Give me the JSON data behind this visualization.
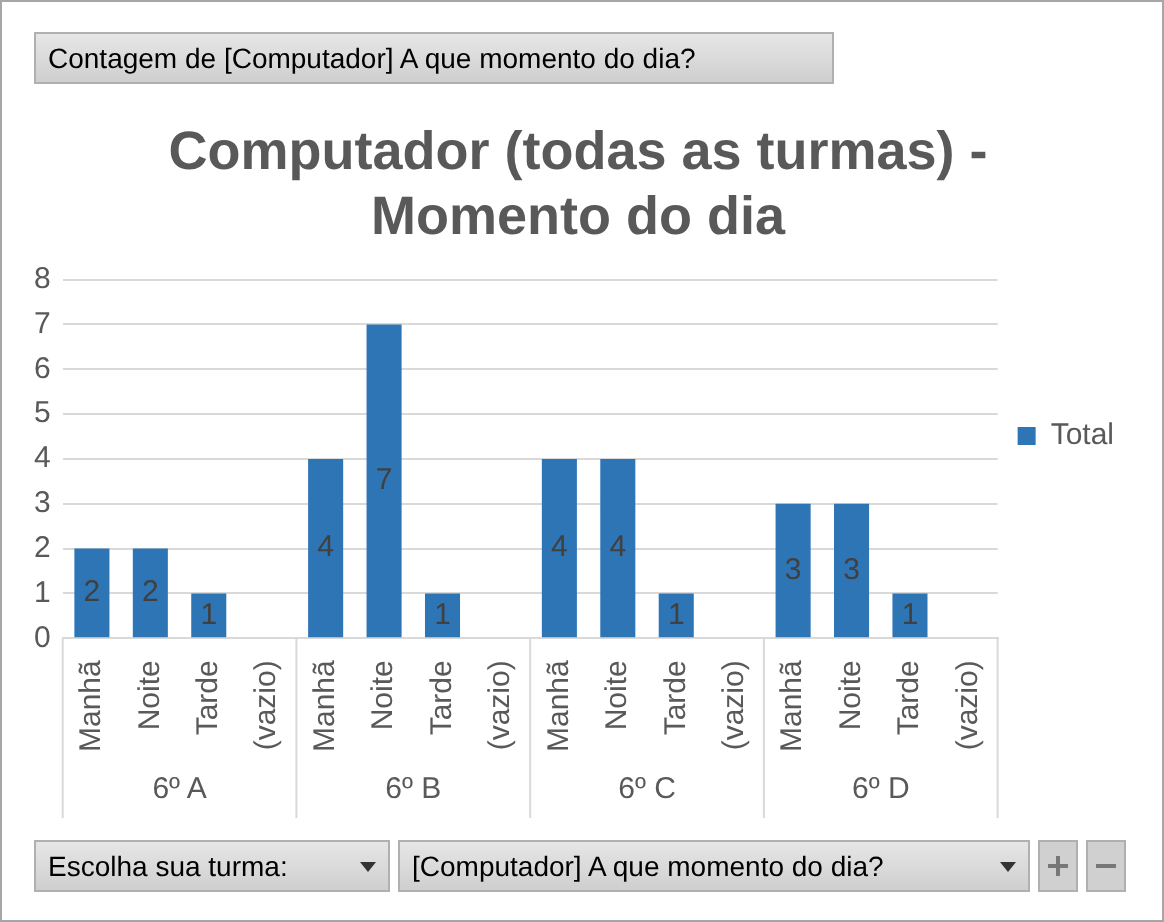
{
  "chart_data": {
    "type": "bar",
    "title": "Computador (todas as turmas) - Momento do dia",
    "categories": [
      "Manhã",
      "Noite",
      "Tarde",
      "(vazio)",
      "Manhã",
      "Noite",
      "Tarde",
      "(vazio)",
      "Manhã",
      "Noite",
      "Tarde",
      "(vazio)",
      "Manhã",
      "Noite",
      "Tarde",
      "(vazio)"
    ],
    "series": [
      {
        "name": "Total",
        "color": "#2e75b6",
        "values": [
          2,
          2,
          1,
          null,
          4,
          7,
          1,
          null,
          4,
          4,
          1,
          null,
          3,
          3,
          1,
          null
        ]
      }
    ],
    "annotations": [
      "Contagem de [Computador] A que momento do dia?",
      "Escolha sua turma:",
      "[Computador] A que momento do dia?",
      "6º A",
      "6º B",
      "6º C",
      "6º D"
    ],
    "ylim": [
      0,
      8
    ],
    "yticks": [
      0,
      1,
      2,
      3,
      4,
      5,
      6,
      7,
      8
    ],
    "grid": "y",
    "legend": "right",
    "data_labels": true
  }
}
